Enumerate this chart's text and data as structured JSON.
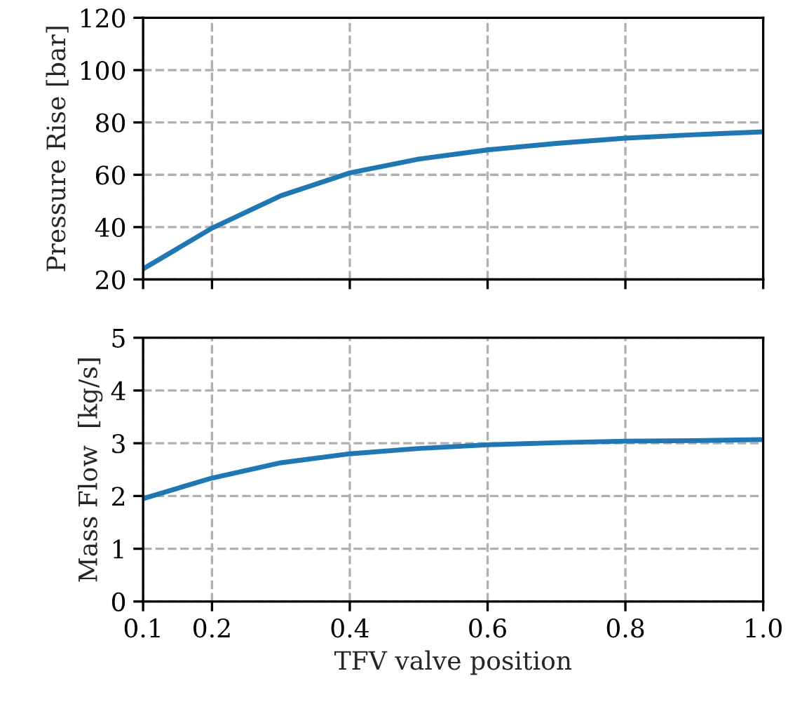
{
  "chart_data": [
    {
      "type": "line",
      "ylabel": "Pressure Rise [bar]",
      "x": [
        0.1,
        0.2,
        0.3,
        0.4,
        0.5,
        0.6,
        0.7,
        0.8,
        0.9,
        1.0
      ],
      "series": [
        {
          "color": "#1f77b4",
          "values": [
            24,
            39.6,
            52,
            60.7,
            66,
            69.5,
            72,
            74,
            75.3,
            76.4
          ]
        }
      ],
      "xlim": [
        0.1,
        1.0
      ],
      "xticks": [
        0.1,
        0.2,
        0.4,
        0.6,
        0.8,
        1.0
      ],
      "ylim": [
        20,
        120
      ],
      "yticks": [
        20,
        40,
        60,
        80,
        100,
        120
      ],
      "grid": true,
      "tick_labels": "y"
    },
    {
      "type": "line",
      "xlabel": "TFV valve position",
      "ylabel": "Mass Flow  [kg/s]",
      "x": [
        0.1,
        0.2,
        0.3,
        0.4,
        0.5,
        0.6,
        0.7,
        0.8,
        0.9,
        1.0
      ],
      "series": [
        {
          "color": "#1f77b4",
          "values": [
            1.95,
            2.34,
            2.63,
            2.8,
            2.9,
            2.97,
            3.01,
            3.04,
            3.05,
            3.07
          ]
        }
      ],
      "xlim": [
        0.1,
        1.0
      ],
      "xticks": [
        0.1,
        0.2,
        0.4,
        0.6,
        0.8,
        {
          "value": 1,
          "label": "1.0"
        }
      ],
      "ylim": [
        0,
        5
      ],
      "yticks": [
        0,
        1,
        2,
        3,
        4,
        5
      ],
      "grid": true
    }
  ]
}
